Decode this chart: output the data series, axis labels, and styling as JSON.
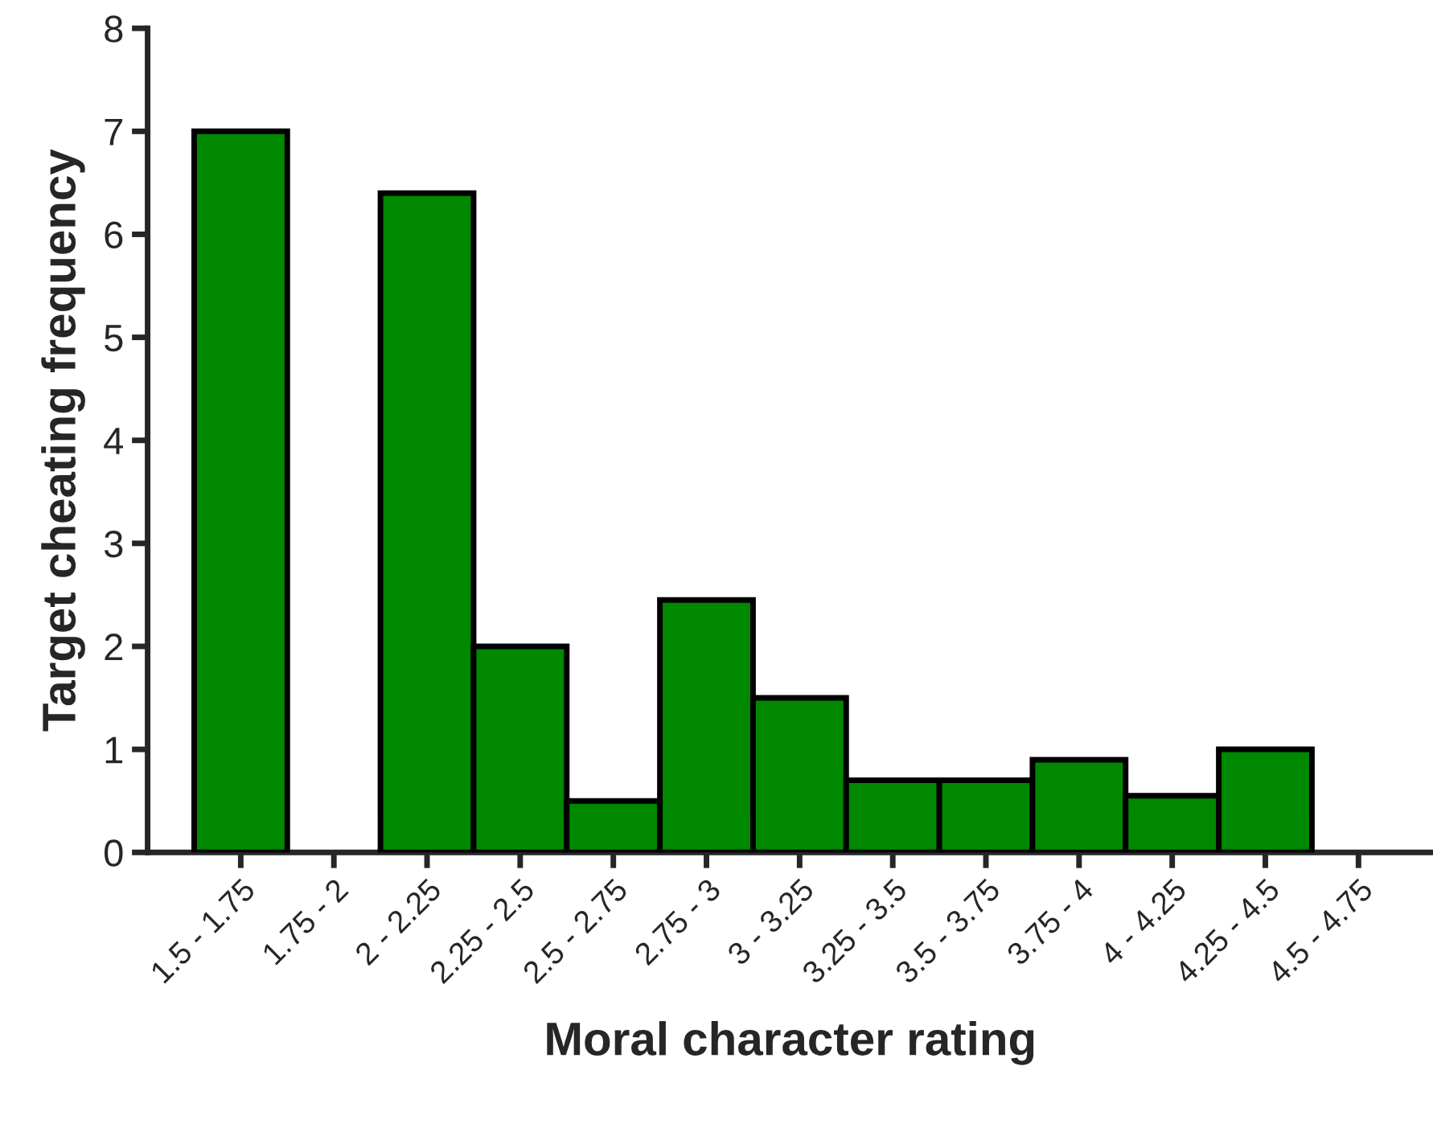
{
  "chart_data": {
    "type": "bar",
    "xlabel": "Moral character rating",
    "ylabel": "Target cheating frequency",
    "categories": [
      "1.5 - 1.75",
      "1.75 - 2",
      "2 - 2.25",
      "2.25 - 2.5",
      "2.5 - 2.75",
      "2.75 - 3",
      "3 - 3.25",
      "3.25 - 3.5",
      "3.5 - 3.75",
      "3.75 - 4",
      "4 - 4.25",
      "4.25 - 4.5",
      "4.5 - 4.75"
    ],
    "values": [
      7,
      0,
      6.4,
      2,
      0.5,
      2.45,
      1.5,
      0.7,
      0.7,
      0.9,
      0.55,
      1,
      0
    ],
    "color": "#008800",
    "ylim": [
      0,
      8
    ],
    "yticks": [
      0,
      1,
      2,
      3,
      4,
      5,
      6,
      7,
      8
    ],
    "grid": false
  }
}
